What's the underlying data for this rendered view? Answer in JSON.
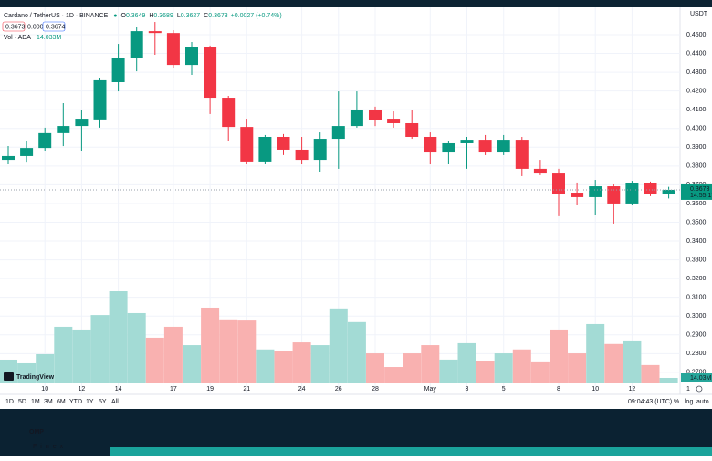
{
  "chart_data": {
    "type": "candlestick",
    "title": "Cardano / TetherUS · 1D · BINANCE",
    "legend_keys": [
      "O",
      "H",
      "L",
      "C"
    ],
    "categories": [
      null,
      null,
      "10",
      null,
      "12",
      null,
      "14",
      null,
      null,
      "17",
      null,
      "19",
      null,
      "21",
      null,
      null,
      "24",
      null,
      "26",
      null,
      "28",
      null,
      null,
      "May",
      null,
      "3",
      null,
      "5",
      null,
      null,
      "8",
      null,
      "10",
      null,
      "12",
      null,
      null
    ],
    "open": [
      0.3833,
      0.3853,
      0.3896,
      0.3975,
      0.4013,
      0.4048,
      0.4247,
      0.4378,
      0.4519,
      0.4509,
      0.4339,
      0.4432,
      0.4164,
      0.4008,
      0.3824,
      0.3955,
      0.3887,
      0.3833,
      0.3945,
      0.4013,
      0.4101,
      0.4052,
      0.4028,
      0.3955,
      0.3872,
      0.3921,
      0.394,
      0.3872,
      0.394,
      0.3785,
      0.376,
      0.3658,
      0.3634,
      0.3692,
      0.36,
      0.3707,
      0.3649
    ],
    "high": [
      0.3906,
      0.3931,
      0.4004,
      0.4135,
      0.4101,
      0.4271,
      0.4451,
      0.4539,
      0.4568,
      0.4524,
      0.4461,
      0.4442,
      0.4174,
      0.4052,
      0.3965,
      0.397,
      0.3955,
      0.3979,
      0.4198,
      0.4198,
      0.4116,
      0.4091,
      0.4101,
      0.3979,
      0.3931,
      0.3955,
      0.3965,
      0.3965,
      0.3955,
      0.3833,
      0.3785,
      0.3712,
      0.3726,
      0.3702,
      0.3721,
      0.3717,
      0.3689
    ],
    "low": [
      0.3809,
      0.3818,
      0.3882,
      0.3906,
      0.3882,
      0.4004,
      0.4198,
      0.4305,
      0.4393,
      0.432,
      0.4286,
      0.4077,
      0.3931,
      0.3809,
      0.3809,
      0.3858,
      0.3809,
      0.377,
      0.3785,
      0.4004,
      0.4013,
      0.4004,
      0.3945,
      0.3809,
      0.3809,
      0.3785,
      0.3858,
      0.3858,
      0.3746,
      0.3751,
      0.3532,
      0.359,
      0.3541,
      0.3493,
      0.359,
      0.3639,
      0.3627
    ],
    "close": [
      0.3853,
      0.3896,
      0.3975,
      0.4013,
      0.4052,
      0.4257,
      0.4378,
      0.4519,
      0.4509,
      0.4339,
      0.4432,
      0.4164,
      0.4008,
      0.3824,
      0.3955,
      0.3887,
      0.3833,
      0.3945,
      0.4013,
      0.4101,
      0.4043,
      0.4028,
      0.3955,
      0.3872,
      0.3921,
      0.394,
      0.3872,
      0.394,
      0.3785,
      0.376,
      0.3653,
      0.3634,
      0.3692,
      0.36,
      0.3707,
      0.3653,
      0.3673
    ],
    "up_color": "#089981",
    "down_color": "#f23645",
    "volume": {
      "name": "Vol · ADA",
      "values": [
        60.8,
        51.5,
        74.8,
        145,
        138,
        175,
        236,
        180,
        117,
        145,
        98,
        194,
        164,
        161,
        87,
        82,
        105,
        98,
        192,
        157,
        77,
        42,
        77,
        98,
        61,
        103,
        58,
        77,
        87,
        54,
        138,
        77,
        152,
        101,
        110,
        47,
        14.033
      ],
      "value_labels": [
        null,
        null,
        null,
        null,
        null,
        null,
        null,
        null,
        null,
        null,
        null,
        null,
        null,
        null,
        null,
        null,
        null,
        null,
        null,
        null,
        null,
        null,
        null,
        null,
        null,
        null,
        null,
        null,
        null,
        null,
        null,
        null,
        null,
        null,
        null,
        null,
        "14.033M"
      ],
      "axis_tag": "14.03M",
      "up_color": "#a3dbd5",
      "down_color": "#f9b1b0"
    },
    "ylim": [
      0.2641,
      0.4646
    ],
    "yticks": [
      {
        "value": 0.27,
        "label": "0.2700"
      },
      {
        "value": 0.28,
        "label": "0.2800"
      },
      {
        "value": 0.29,
        "label": "0.2900"
      },
      {
        "value": 0.3,
        "label": "0.3000"
      },
      {
        "value": 0.31,
        "label": "0.3100"
      },
      {
        "value": 0.32,
        "label": "0.3200"
      },
      {
        "value": 0.33,
        "label": "0.3300"
      },
      {
        "value": 0.34,
        "label": "0.3400"
      },
      {
        "value": 0.35,
        "label": "0.3500"
      },
      {
        "value": 0.36,
        "label": "0.3600"
      },
      {
        "value": 0.37,
        "label": "0.3700"
      },
      {
        "value": 0.38,
        "label": "0.3800"
      },
      {
        "value": 0.39,
        "label": "0.3900"
      },
      {
        "value": 0.4,
        "label": "0.4000"
      },
      {
        "value": 0.41,
        "label": "0.4100"
      },
      {
        "value": 0.42,
        "label": "0.4200"
      },
      {
        "value": 0.43,
        "label": "0.4300"
      },
      {
        "value": 0.44,
        "label": "0.4400"
      },
      {
        "value": 0.45,
        "label": "0.4500"
      }
    ],
    "grid": true,
    "change": "+0.0027 (+0.74%)",
    "countdown": "14:55:17"
  },
  "ui": {
    "currency": "USDT",
    "sell": "0.3673",
    "spread": "0.0001",
    "buy": "0.3674",
    "watermark": "TradingView",
    "ranges": [
      "1D",
      "5D",
      "1M",
      "3M",
      "6M",
      "YTD",
      "1Y",
      "5Y",
      "All"
    ],
    "time": "09:04:43 (UTC)",
    "scale_buttons": [
      "%",
      "log",
      "auto"
    ],
    "page_marker": "1",
    "brand": "OMP",
    "brand_sub": "Finex"
  }
}
